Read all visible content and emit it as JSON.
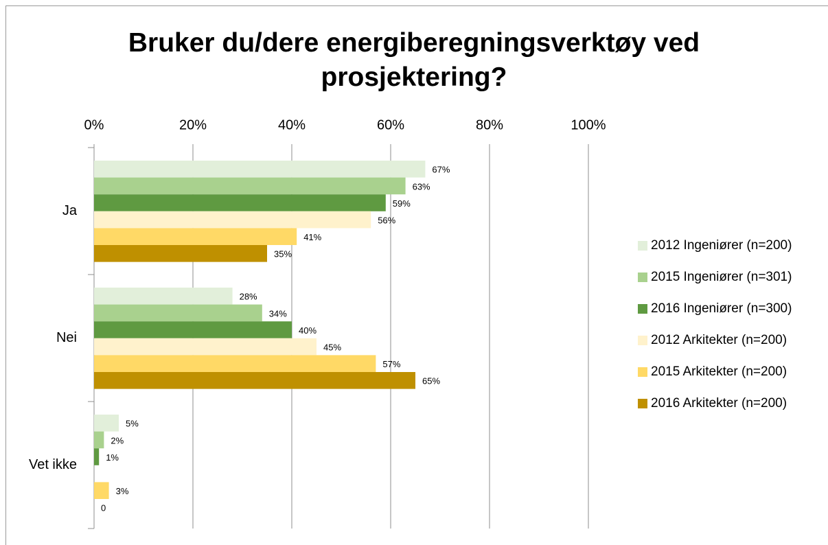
{
  "chart_data": {
    "type": "hbar",
    "title": "Bruker du/dere energiberegningsverktøy ved prosjektering?",
    "categories": [
      "Ja",
      "Nei",
      "Vet ikke"
    ],
    "series": [
      {
        "name": "2012 Ingeniører (n=200)",
        "color": "#e2efda",
        "values": [
          67,
          28,
          5
        ],
        "value_labels": [
          "67%",
          "28%",
          "5%"
        ]
      },
      {
        "name": "2015 Ingeniører (n=301)",
        "color": "#a9d18e",
        "values": [
          63,
          34,
          2
        ],
        "value_labels": [
          "63%",
          "34%",
          "2%"
        ]
      },
      {
        "name": "2016 Ingeniører (n=300)",
        "color": "#5f9a41",
        "values": [
          59,
          40,
          1
        ],
        "value_labels": [
          "59%",
          "40%",
          "1%"
        ]
      },
      {
        "name": "2012 Arkitekter (n=200)",
        "color": "#fff2cc",
        "values": [
          56,
          45,
          null
        ],
        "value_labels": [
          "56%",
          "45%",
          null
        ]
      },
      {
        "name": "2015 Arkitekter (n=200)",
        "color": "#ffd966",
        "values": [
          41,
          57,
          3
        ],
        "value_labels": [
          "41%",
          "57%",
          "3%"
        ]
      },
      {
        "name": "2016 Arkitekter (n=200)",
        "color": "#bf9000",
        "values": [
          35,
          65,
          0
        ],
        "value_labels": [
          "35%",
          "65%",
          "0"
        ]
      }
    ],
    "xlim": [
      0,
      100
    ],
    "xticks": [
      {
        "value": 0,
        "label": "0%"
      },
      {
        "value": 20,
        "label": "20%"
      },
      {
        "value": 40,
        "label": "40%"
      },
      {
        "value": 60,
        "label": "60%"
      },
      {
        "value": 80,
        "label": "80%"
      },
      {
        "value": 100,
        "label": "100%"
      }
    ],
    "grid": true,
    "legend": "right"
  }
}
